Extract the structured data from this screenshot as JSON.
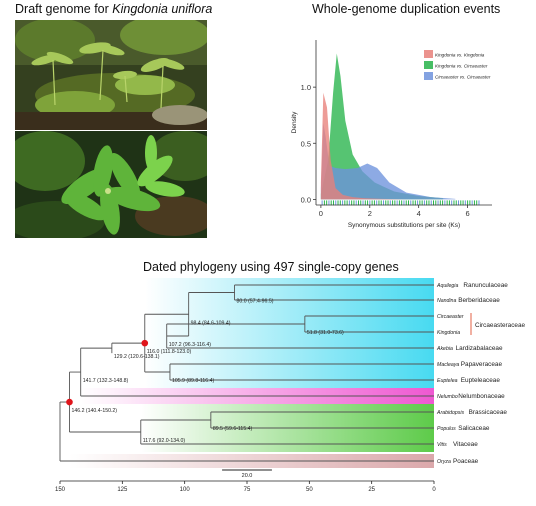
{
  "panel_titles": {
    "top_left_prefix": "Draft genome for ",
    "top_left_species": "Kingdonia uniflora",
    "top_right": "Whole-genome duplication events",
    "bottom": "Dated phylogeny using 497 single-copy genes"
  },
  "colors": {
    "red_series": "#e8807a",
    "green_series": "#27b34a",
    "blue_series": "#6d92dc",
    "node_marker": "#e0141b",
    "blue_band": "#3ed8f0",
    "magenta_band": "#ee4fcf",
    "green_band": "#55c840",
    "pink_band": "#d9a3a6"
  },
  "chart_data": [
    {
      "type": "area",
      "xlabel": "Synonymous substitutions per site (Ks)",
      "ylabel": "Density",
      "x_ticks": [
        "0",
        "2",
        "4",
        "6"
      ],
      "y_ticks": [
        "0.0",
        "0.5",
        "1.0"
      ],
      "xlim": [
        -0.2,
        7.0
      ],
      "ylim": [
        -0.05,
        1.42
      ],
      "legend_position": "top-right",
      "series": [
        {
          "name": "Kingdonia vs. Kingdonia",
          "color": "#e8807a",
          "x": [
            0,
            0.1,
            0.25,
            0.4,
            0.6,
            0.9,
            1.3,
            1.8,
            2.5,
            3.5
          ],
          "y": [
            0.15,
            0.95,
            0.82,
            0.35,
            0.1,
            0.04,
            0.02,
            0.01,
            0.005,
            0
          ]
        },
        {
          "name": "Kingdonia vs. Circaeaster",
          "color": "#27b34a",
          "x": [
            0,
            0.3,
            0.5,
            0.65,
            0.8,
            1.0,
            1.3,
            1.7,
            2.2,
            3.0,
            4.0,
            5.0
          ],
          "y": [
            0.05,
            0.35,
            0.95,
            1.3,
            1.1,
            0.7,
            0.4,
            0.25,
            0.15,
            0.07,
            0.03,
            0.01
          ]
        },
        {
          "name": "Circaeaster vs. Circaeaster",
          "color": "#6d92dc",
          "x": [
            0,
            0.1,
            0.2,
            0.35,
            0.6,
            1.0,
            1.5,
            1.9,
            2.3,
            2.8,
            3.5,
            4.5,
            5.5
          ],
          "y": [
            0.1,
            0.68,
            0.55,
            0.3,
            0.28,
            0.27,
            0.28,
            0.32,
            0.28,
            0.15,
            0.06,
            0.02,
            0.005
          ]
        }
      ]
    },
    {
      "type": "tree",
      "scale_label": "20.0",
      "axis_ticks": [
        150,
        125,
        100,
        75,
        50,
        25,
        0
      ],
      "xlim": [
        150,
        0
      ],
      "taxa": [
        {
          "genus": "Aquilegia",
          "family": "Ranunculaceae"
        },
        {
          "genus": "Nandina",
          "family": "Berberidaceae"
        },
        {
          "genus": "Circaeaster",
          "family": ""
        },
        {
          "genus": "Kingdonia",
          "family": ""
        },
        {
          "genus": "Akebia",
          "family": "Lardizabalaceae"
        },
        {
          "genus": "Macleaya",
          "family": "Papaveraceae"
        },
        {
          "genus": "Euptelea",
          "family": "Eupteleaceae"
        },
        {
          "genus": "Nelumbo",
          "family": "Nelumbonaceae"
        },
        {
          "genus": "Arabidopsis",
          "family": "Brassicaceae"
        },
        {
          "genus": "Populus",
          "family": "Salicaceae"
        },
        {
          "genus": "Vitis",
          "family": "Vitaceae"
        },
        {
          "genus": "Oryza",
          "family": "Poaceae"
        }
      ],
      "bracket_family": "Circaeasteraceae",
      "nodes": [
        {
          "label": "80.0 (57.4-96.5)",
          "age": 80.0
        },
        {
          "label": "98.4 (84.6-109.4)",
          "age": 98.4
        },
        {
          "label": "51.8 (31.0-73.6)",
          "age": 51.8
        },
        {
          "label": "107.2 (96.3-116.4)",
          "age": 107.2
        },
        {
          "label": "116.0 (111.8-123.0)",
          "age": 116.0
        },
        {
          "label": "105.9 (89.8-116.4)",
          "age": 105.9
        },
        {
          "label": "129.2 (120.6-138.1)",
          "age": 129.2
        },
        {
          "label": "141.7 (132.3-148.8)",
          "age": 141.7
        },
        {
          "label": "89.5 (59.6-115.4)",
          "age": 89.5
        },
        {
          "label": "117.6 (92.0-134.0)",
          "age": 117.6
        },
        {
          "label": "146.2 (140.4-150.2)",
          "age": 146.2
        }
      ]
    }
  ]
}
